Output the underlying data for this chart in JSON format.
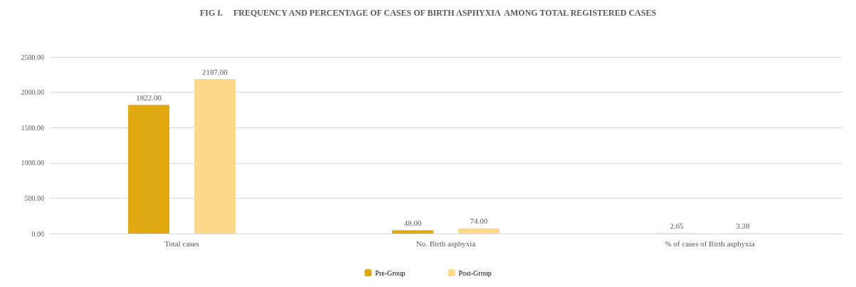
{
  "chart_data": {
    "type": "bar",
    "title": "FIG I.     FREQUENCY AND PERCENTAGE OF CASES OF BIRTH ASPHYXIA  AMONG TOTAL REGISTERED CASES",
    "categories": [
      "Total cases",
      "No. Birth asphyxia",
      "% of cases of Birth asphyxia"
    ],
    "series": [
      {
        "name": "Pre-Group",
        "color": "#e0a912",
        "values": [
          1822,
          48,
          2.65
        ],
        "value_labels": [
          "1822.00",
          "48.00",
          "2.65"
        ]
      },
      {
        "name": "Post-Group",
        "color": "#fcd98a",
        "values": [
          2187,
          74,
          3.38
        ],
        "value_labels": [
          "2187.00",
          "74.00",
          "3.38"
        ]
      }
    ],
    "ylim": [
      0,
      2500
    ],
    "yticks": [
      {
        "value": 0,
        "label": "0.00"
      },
      {
        "value": 500,
        "label": "500.00"
      },
      {
        "value": 1000,
        "label": "1000.00"
      },
      {
        "value": 1500,
        "label": "1500.00"
      },
      {
        "value": 2000,
        "label": "2000.00"
      },
      {
        "value": 2500,
        "label": "2500.00"
      }
    ],
    "grid": "y",
    "legend": "bottom"
  }
}
